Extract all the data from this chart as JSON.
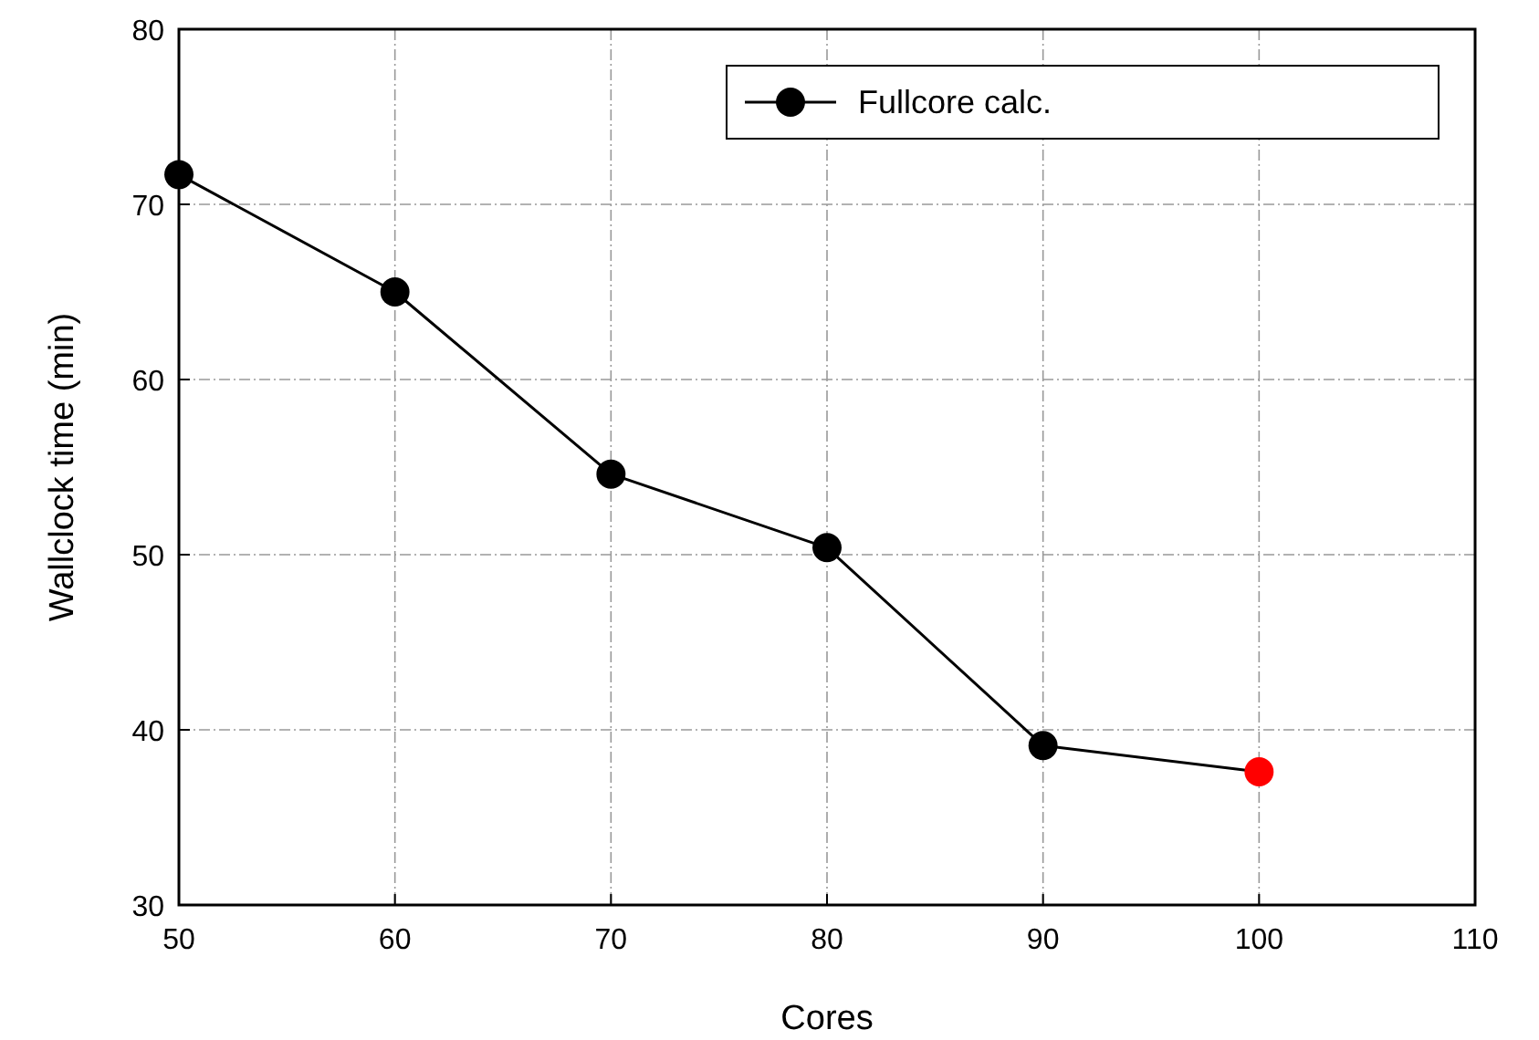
{
  "chart_data": {
    "type": "line",
    "xlabel": "Cores",
    "ylabel": "Wallclock time (min)",
    "x": [
      50,
      60,
      70,
      80,
      90,
      100
    ],
    "series": [
      {
        "name": "Fullcore calc.",
        "color": "#000000",
        "colors": [
          "#000000",
          "#000000",
          "#000000",
          "#000000",
          "#000000",
          "#ff0000"
        ],
        "values": [
          71.7,
          65,
          54.6,
          50.4,
          39.1,
          37.6
        ]
      }
    ],
    "xlim": [
      50,
      110
    ],
    "xticks": [
      50,
      60,
      70,
      80,
      90,
      100,
      110
    ],
    "ylim": [
      30,
      80
    ],
    "yticks": [
      30,
      40,
      50,
      60,
      70,
      80
    ],
    "grid": true,
    "legend": "top right",
    "marker": "circle",
    "line_style": "solid"
  }
}
